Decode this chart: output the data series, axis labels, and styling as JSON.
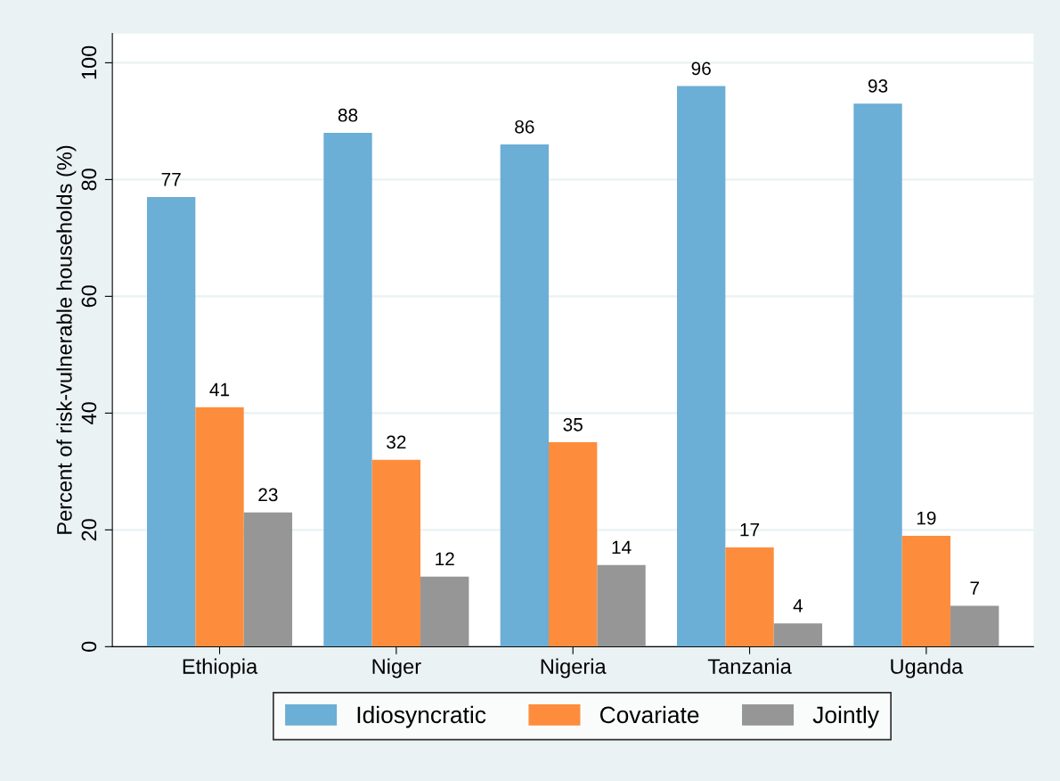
{
  "chart_data": {
    "type": "bar",
    "ylabel": "Percent of risk-vulnerable households (%)",
    "categories": [
      "Ethiopia",
      "Niger",
      "Nigeria",
      "Tanzania",
      "Uganda"
    ],
    "series": [
      {
        "name": "Idiosyncratic",
        "color": "#6baed6",
        "values": [
          77,
          88,
          86,
          96,
          93
        ]
      },
      {
        "name": "Covariate",
        "color": "#fd8d3c",
        "values": [
          41,
          32,
          35,
          17,
          19
        ]
      },
      {
        "name": "Jointly",
        "color": "#969696",
        "values": [
          23,
          12,
          14,
          4,
          7
        ]
      }
    ],
    "ylim": [
      0,
      105
    ],
    "yticks": [
      0,
      20,
      40,
      60,
      80,
      100
    ],
    "grid": "y",
    "legend": "bottom",
    "data_labels": true
  }
}
